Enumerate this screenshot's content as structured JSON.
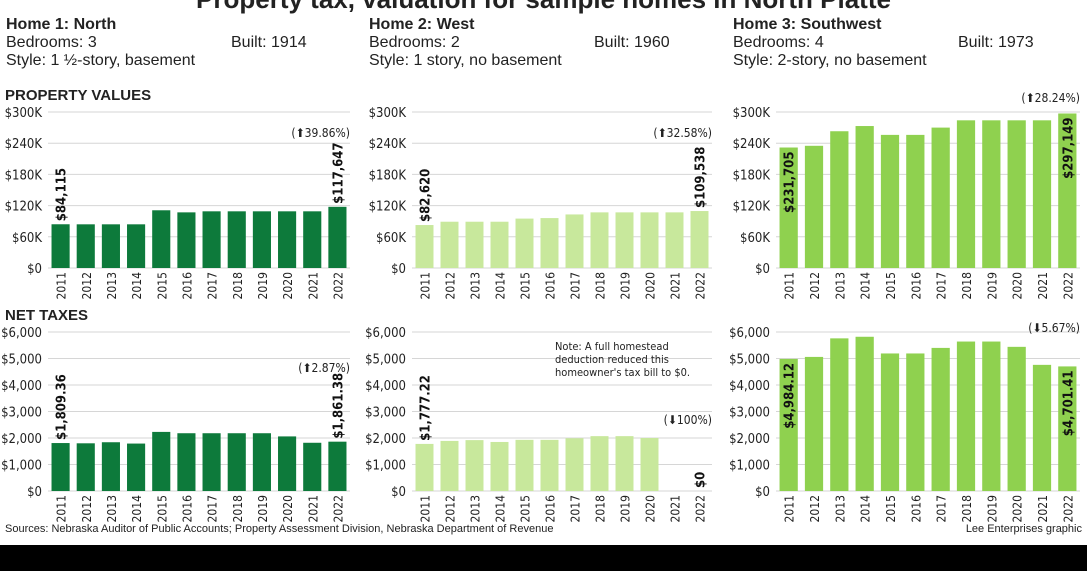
{
  "title": "Property tax, valuation for sample homes in North Platte",
  "homes": [
    {
      "title": "Home 1: North",
      "bedrooms": "Bedrooms: 3",
      "built": "Built: 1914",
      "style": "Style: 1 ½-story, basement"
    },
    {
      "title": "Home 2: West",
      "bedrooms": "Bedrooms: 2",
      "built": "Built: 1960",
      "style": "Style: 1 story, no basement"
    },
    {
      "title": "Home 3: Southwest",
      "bedrooms": "Bedrooms: 4",
      "built": "Built: 1973",
      "style": "Style: 2-story, no basement"
    }
  ],
  "sections": {
    "values": "PROPERTY VALUES",
    "taxes": "NET TAXES"
  },
  "footer": {
    "sources": "Sources: Nebraska Auditor of Public Accounts; Property Assessment Division, Nebraska Department of Revenue",
    "credit": "Lee Enterprises graphic"
  },
  "colors": {
    "home1": "#0d7a3b",
    "home2": "#c8e89c",
    "home3": "#8fd14f",
    "grid": "#d6d6d6",
    "text": "#222222"
  },
  "chart_data": [
    {
      "type": "bar",
      "home": "Home 1: North",
      "metric": "PROPERTY VALUES",
      "categories": [
        "2011",
        "2012",
        "2013",
        "2014",
        "2015",
        "2016",
        "2017",
        "2018",
        "2019",
        "2020",
        "2021",
        "2022"
      ],
      "values": [
        84115,
        84000,
        84000,
        84000,
        111000,
        107000,
        109000,
        109000,
        109000,
        109000,
        109000,
        117647
      ],
      "yticks": [
        "$0",
        "$60K",
        "$120K",
        "$180K",
        "$240K",
        "$300K"
      ],
      "ylim": [
        0,
        300000
      ],
      "labels": {
        "first": "$84,115",
        "last": "$117,647"
      },
      "change": "39.86%",
      "change_dir": "up",
      "grid": true
    },
    {
      "type": "bar",
      "home": "Home 2: West",
      "metric": "PROPERTY VALUES",
      "categories": [
        "2011",
        "2012",
        "2013",
        "2014",
        "2015",
        "2016",
        "2017",
        "2018",
        "2019",
        "2020",
        "2021",
        "2022"
      ],
      "values": [
        82620,
        89000,
        89000,
        89000,
        95000,
        96000,
        103000,
        107000,
        107000,
        107000,
        107000,
        109538
      ],
      "yticks": [
        "$0",
        "$60K",
        "$120K",
        "$180K",
        "$240K",
        "$300K"
      ],
      "ylim": [
        0,
        300000
      ],
      "labels": {
        "first": "$82,620",
        "last": "$109,538"
      },
      "change": "32.58%",
      "change_dir": "up",
      "grid": true
    },
    {
      "type": "bar",
      "home": "Home 3: Southwest",
      "metric": "PROPERTY VALUES",
      "categories": [
        "2011",
        "2012",
        "2013",
        "2014",
        "2015",
        "2016",
        "2017",
        "2018",
        "2019",
        "2020",
        "2021",
        "2022"
      ],
      "values": [
        231705,
        235000,
        263000,
        273000,
        256000,
        256000,
        270000,
        284000,
        284000,
        284000,
        284000,
        297149
      ],
      "yticks": [
        "$0",
        "$60K",
        "$120K",
        "$180K",
        "$240K",
        "$300K"
      ],
      "ylim": [
        0,
        300000
      ],
      "labels": {
        "first": "$231,705",
        "last": "$297,149"
      },
      "change": "28.24%",
      "change_dir": "up",
      "grid": true
    },
    {
      "type": "bar",
      "home": "Home 1: North",
      "metric": "NET TAXES",
      "categories": [
        "2011",
        "2012",
        "2013",
        "2014",
        "2015",
        "2016",
        "2017",
        "2018",
        "2019",
        "2020",
        "2021",
        "2022"
      ],
      "values": [
        1809.36,
        1800,
        1840,
        1790,
        2230,
        2180,
        2180,
        2180,
        2180,
        2060,
        1820,
        1861.38
      ],
      "yticks": [
        "$0",
        "$1,000",
        "$2,000",
        "$3,000",
        "$4,000",
        "$5,000",
        "$6,000"
      ],
      "ylim": [
        0,
        6000
      ],
      "labels": {
        "first": "$1,809.36",
        "last": "$1,861.38"
      },
      "change": "2.87%",
      "change_dir": "up",
      "grid": true
    },
    {
      "type": "bar",
      "home": "Home 2: West",
      "metric": "NET TAXES",
      "categories": [
        "2011",
        "2012",
        "2013",
        "2014",
        "2015",
        "2016",
        "2017",
        "2018",
        "2019",
        "2020",
        "2021",
        "2022"
      ],
      "values": [
        1777.22,
        1890,
        1920,
        1850,
        1930,
        1930,
        1990,
        2070,
        2070,
        2000,
        null,
        0
      ],
      "yticks": [
        "$0",
        "$1,000",
        "$2,000",
        "$3,000",
        "$4,000",
        "$5,000",
        "$6,000"
      ],
      "ylim": [
        0,
        6000
      ],
      "labels": {
        "first": "$1,777.22",
        "last": "$0"
      },
      "change": "100%",
      "change_dir": "down",
      "grid": true,
      "note": [
        "Note: A full homestead",
        "deduction reduced this",
        "homeowner's tax bill to $0."
      ]
    },
    {
      "type": "bar",
      "home": "Home 3: Southwest",
      "metric": "NET TAXES",
      "categories": [
        "2011",
        "2012",
        "2013",
        "2014",
        "2015",
        "2016",
        "2017",
        "2018",
        "2019",
        "2020",
        "2021",
        "2022"
      ],
      "values": [
        4984.12,
        5060,
        5760,
        5820,
        5190,
        5190,
        5400,
        5640,
        5640,
        5440,
        4760,
        4701.41
      ],
      "yticks": [
        "$0",
        "$1,000",
        "$2,000",
        "$3,000",
        "$4,000",
        "$5,000",
        "$6,000"
      ],
      "ylim": [
        0,
        6000
      ],
      "labels": {
        "first": "$4,984.12",
        "last": "$4,701.41"
      },
      "change": "5.67%",
      "change_dir": "down",
      "grid": true
    }
  ]
}
